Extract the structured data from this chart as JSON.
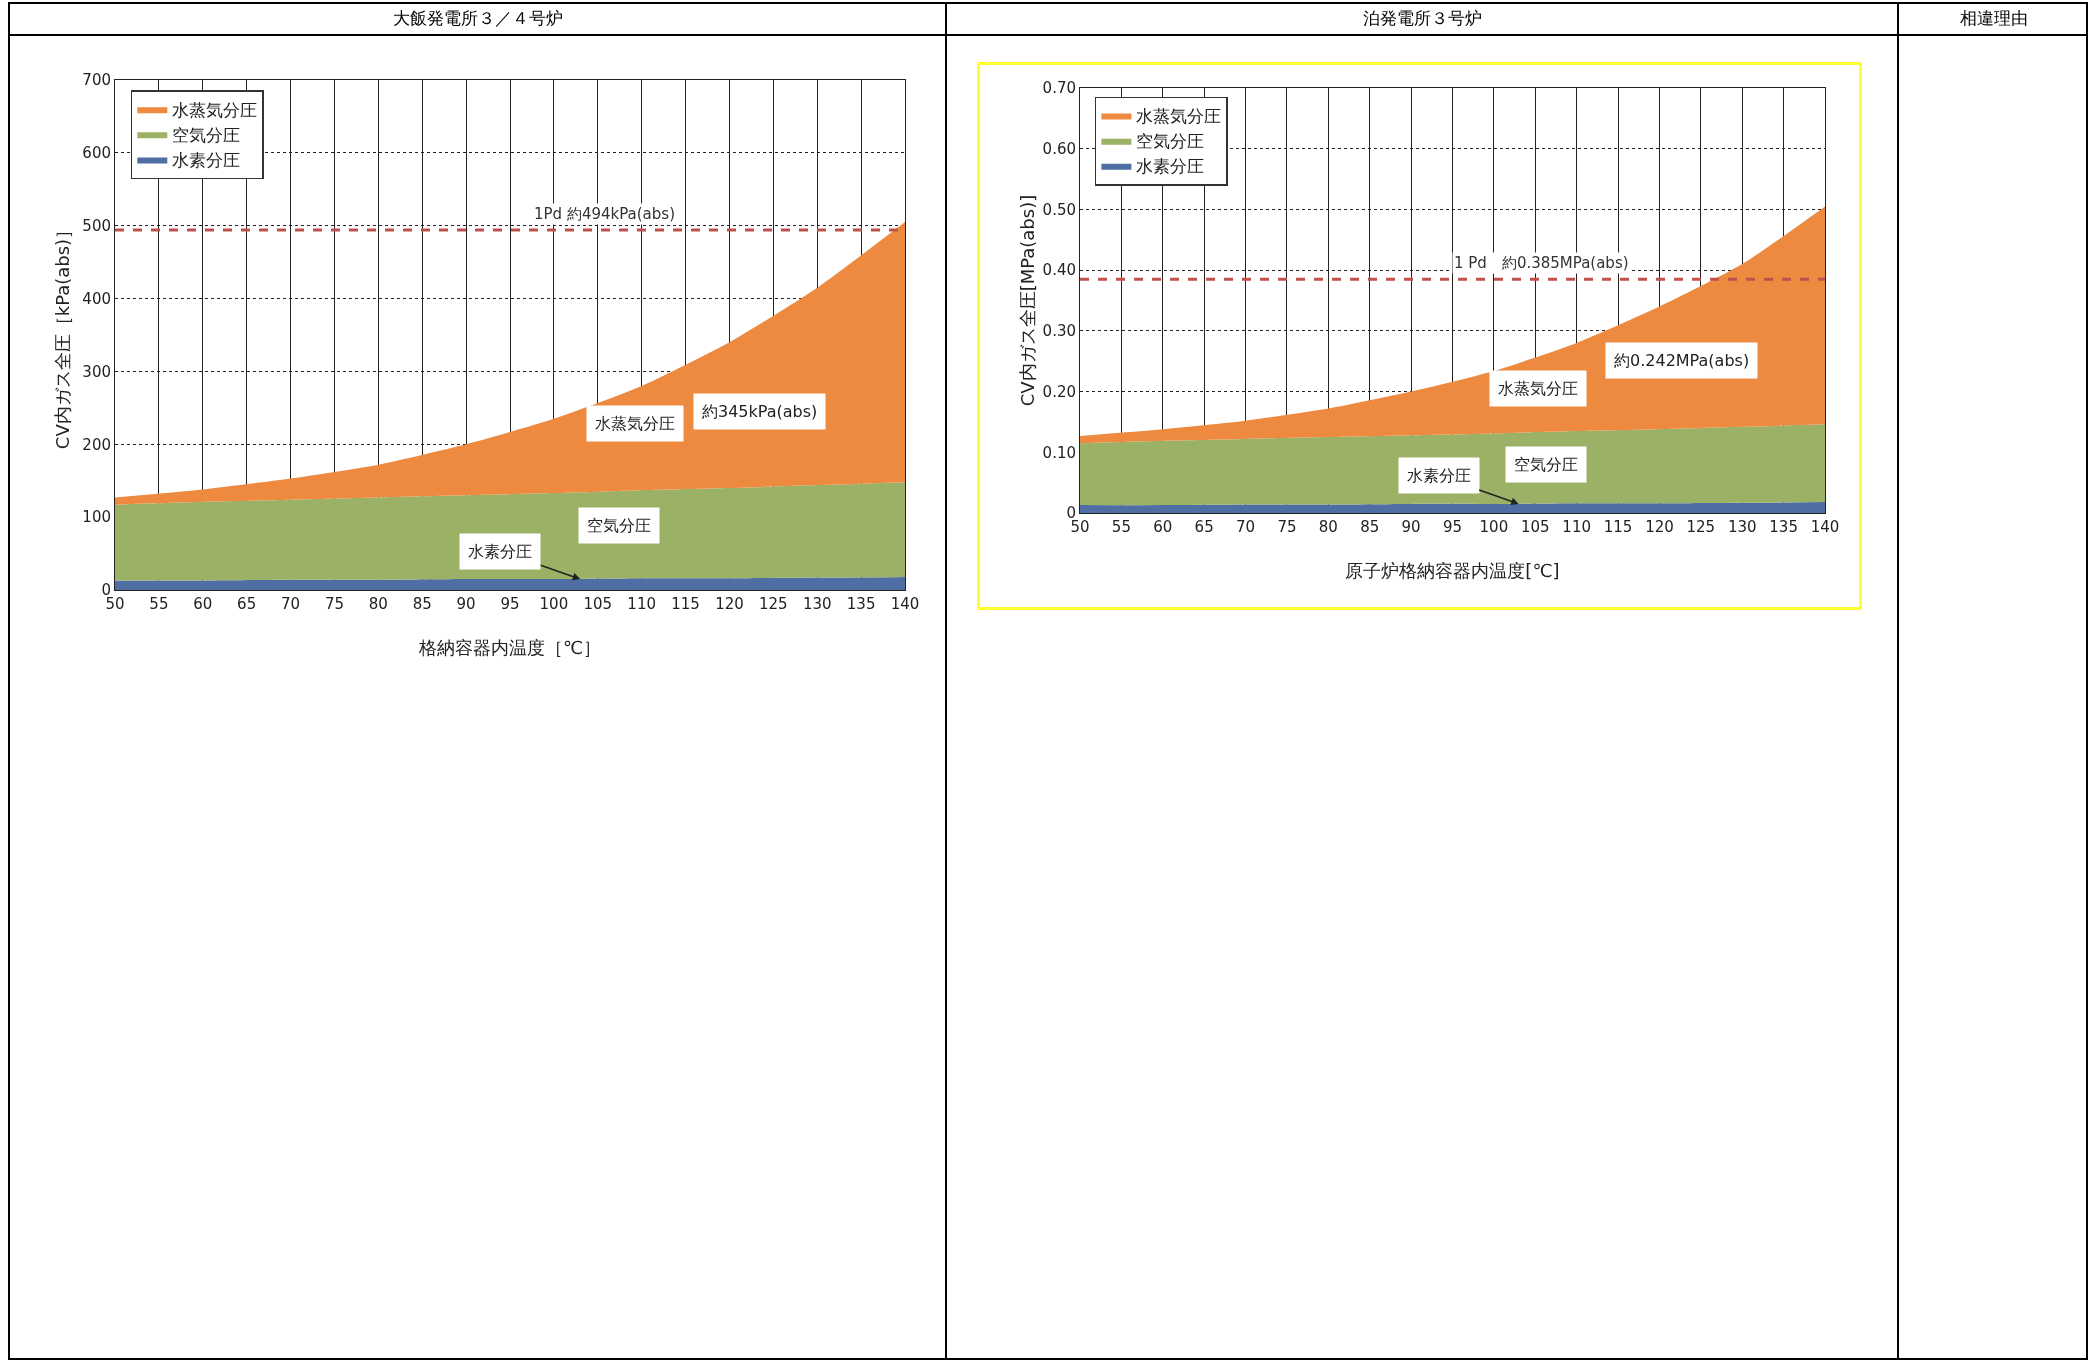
{
  "chart_data": [
    {
      "type": "area",
      "stacked": true,
      "title": "大飯発電所３／４号炉",
      "xlabel": "格納容器内温度［℃］",
      "ylabel": "CV内ガス全圧［kPa(abs)］",
      "x": [
        50,
        60,
        70,
        80,
        90,
        100,
        110,
        120,
        130,
        140
      ],
      "series": [
        {
          "name": "水素分圧",
          "color": "#4f6ea4",
          "values": [
            13,
            13,
            14,
            14,
            15,
            15,
            16,
            16,
            17,
            18
          ]
        },
        {
          "name": "空気分圧",
          "color": "#9bb266",
          "values": [
            104,
            108,
            110,
            113,
            115,
            118,
            121,
            124,
            127,
            130
          ]
        },
        {
          "name": "水蒸気分圧",
          "color": "#ee8a40",
          "values": [
            10,
            17,
            29,
            45,
            70,
            102,
            143,
            200,
            271,
            357
          ]
        }
      ],
      "xlim": [
        50,
        140
      ],
      "xticks": [
        50,
        55,
        60,
        65,
        70,
        75,
        80,
        85,
        90,
        95,
        100,
        105,
        110,
        115,
        120,
        125,
        130,
        135,
        140
      ],
      "ylim": [
        0,
        700
      ],
      "yticks": [
        0,
        100,
        200,
        300,
        400,
        500,
        600,
        700
      ],
      "grid": true,
      "legend": "top left",
      "ref_lines": [
        {
          "axis": "y",
          "value": 494,
          "label": "1Pd 約494kPa(abs)",
          "color": "#c0504d",
          "line_style": "dashed"
        }
      ],
      "annotations": [
        "水蒸気分圧",
        "空気分圧",
        {
          "text": "水素分圧",
          "x": 103,
          "y": 15
        },
        "約345kPa(abs)"
      ]
    },
    {
      "type": "area",
      "stacked": true,
      "title": "泊発電所３号炉",
      "xlabel": "原子炉格納容器内温度[℃]",
      "ylabel": "CV内ガス全圧[MPa(abs)]",
      "x": [
        50,
        60,
        70,
        80,
        90,
        100,
        110,
        120,
        130,
        140
      ],
      "series": [
        {
          "name": "水素分圧",
          "color": "#4f6ea4",
          "values": [
            0.013,
            0.013,
            0.014,
            0.014,
            0.015,
            0.015,
            0.016,
            0.016,
            0.017,
            0.018
          ]
        },
        {
          "name": "空気分圧",
          "color": "#9bb266",
          "values": [
            0.102,
            0.106,
            0.108,
            0.111,
            0.113,
            0.116,
            0.119,
            0.122,
            0.125,
            0.128
          ]
        },
        {
          "name": "水蒸気分圧",
          "color": "#ee8a40",
          "values": [
            0.012,
            0.019,
            0.03,
            0.047,
            0.072,
            0.103,
            0.145,
            0.202,
            0.268,
            0.359
          ]
        }
      ],
      "xlim": [
        50,
        140
      ],
      "xticks": [
        50,
        55,
        60,
        65,
        70,
        75,
        80,
        85,
        90,
        95,
        100,
        105,
        110,
        115,
        120,
        125,
        130,
        135,
        140
      ],
      "ylim": [
        0,
        0.7
      ],
      "yticks": [
        {
          "value": 0,
          "label": "0"
        },
        {
          "value": 0.1,
          "label": "0.10"
        },
        {
          "value": 0.2,
          "label": "0.20"
        },
        {
          "value": 0.3,
          "label": "0.30"
        },
        {
          "value": 0.4,
          "label": "0.40"
        },
        {
          "value": 0.5,
          "label": "0.50"
        },
        {
          "value": 0.6,
          "label": "0.60"
        },
        {
          "value": 0.7,
          "label": "0.70"
        }
      ],
      "grid": true,
      "legend": "top left",
      "ref_lines": [
        {
          "axis": "y",
          "value": 0.385,
          "label": "1 Pd　約0.385MPa(abs)",
          "color": "#c0504d",
          "line_style": "dashed"
        }
      ],
      "annotations": [
        "水蒸気分圧",
        "空気分圧",
        {
          "text": "水素分圧",
          "x": 103,
          "y": 0.015
        },
        "約0.242MPa(abs)"
      ]
    },
    {
      "type": "other",
      "title": "相違理由"
    }
  ]
}
